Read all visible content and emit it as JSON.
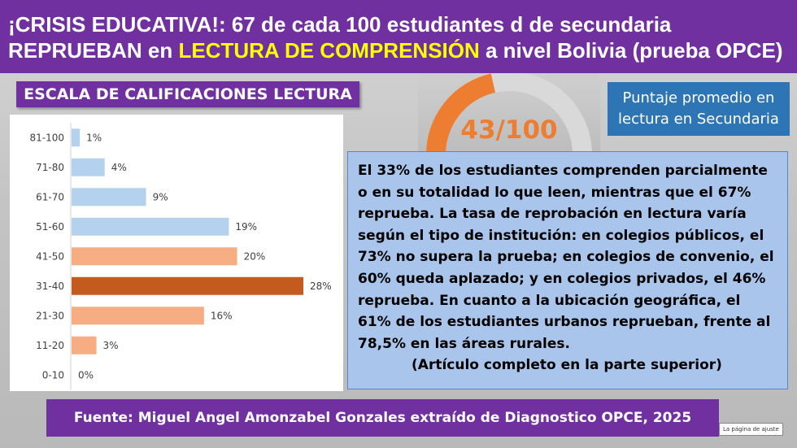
{
  "header": {
    "line1": "¡CRISIS EDUCATIVA!: 67 de cada 100 estudiantes d de secundaria",
    "line2_part1": "REPRUEBAN en ",
    "line2_highlight": "LECTURA DE COMPRENSIÓN",
    "line2_part3": " a nivel Bolivia (prueba OPCE)"
  },
  "scale_title": "ESCALA DE CALIFICACIONES LECTURA",
  "chart_data": {
    "type": "bar",
    "orientation": "horizontal",
    "categories": [
      "81-100",
      "71-80",
      "61-70",
      "51-60",
      "41-50",
      "31-40",
      "21-30",
      "11-20",
      "0-10"
    ],
    "values": [
      1,
      4,
      9,
      19,
      20,
      28,
      16,
      3,
      0
    ],
    "value_labels": [
      "1%",
      "4%",
      "9%",
      "19%",
      "20%",
      "28%",
      "16%",
      "3%",
      "0%"
    ],
    "colors": [
      "#b4d2ee",
      "#b4d2ee",
      "#b4d2ee",
      "#b4d2ee",
      "#f6ad82",
      "#c55a1e",
      "#f6ad82",
      "#f6ad82",
      "#f6ad82"
    ],
    "xlim": [
      0,
      28
    ],
    "grid": false
  },
  "gauge": {
    "label": "43/100",
    "value": 43,
    "max": 100,
    "fill_color": "#ed7d31",
    "track_color": "#d9d9d9"
  },
  "avg_box": {
    "line1": "Puntaje promedio en",
    "line2": "lectura  en Secundaria"
  },
  "info": {
    "paragraph": "El 33% de los estudiantes comprenden parcialmente o en su totalidad lo que leen, mientras que el 67% reprueba. La tasa de reprobación en lectura varía según el tipo de institución: en colegios públicos, el 73% no supera la prueba; en colegios de convenio, el 60% queda aplazado; y en colegios privados, el 46% reprueba. En cuanto a la ubicación geográfica, el 61% de los estudiantes urbanos reprueban, frente al 78,5% en las áreas rurales.",
    "note": "(Artículo completo en la parte superior)"
  },
  "footer": "Fuente: Miguel Angel Amonzabel Gonzales extraído de Diagnostico  OPCE, 2025",
  "page_tag": "La página de ajuste",
  "colors": {
    "purple": "#7030a0",
    "yellow": "#ffff00",
    "blue_box": "#2e75b6",
    "info_bg": "#a9c5eb"
  }
}
